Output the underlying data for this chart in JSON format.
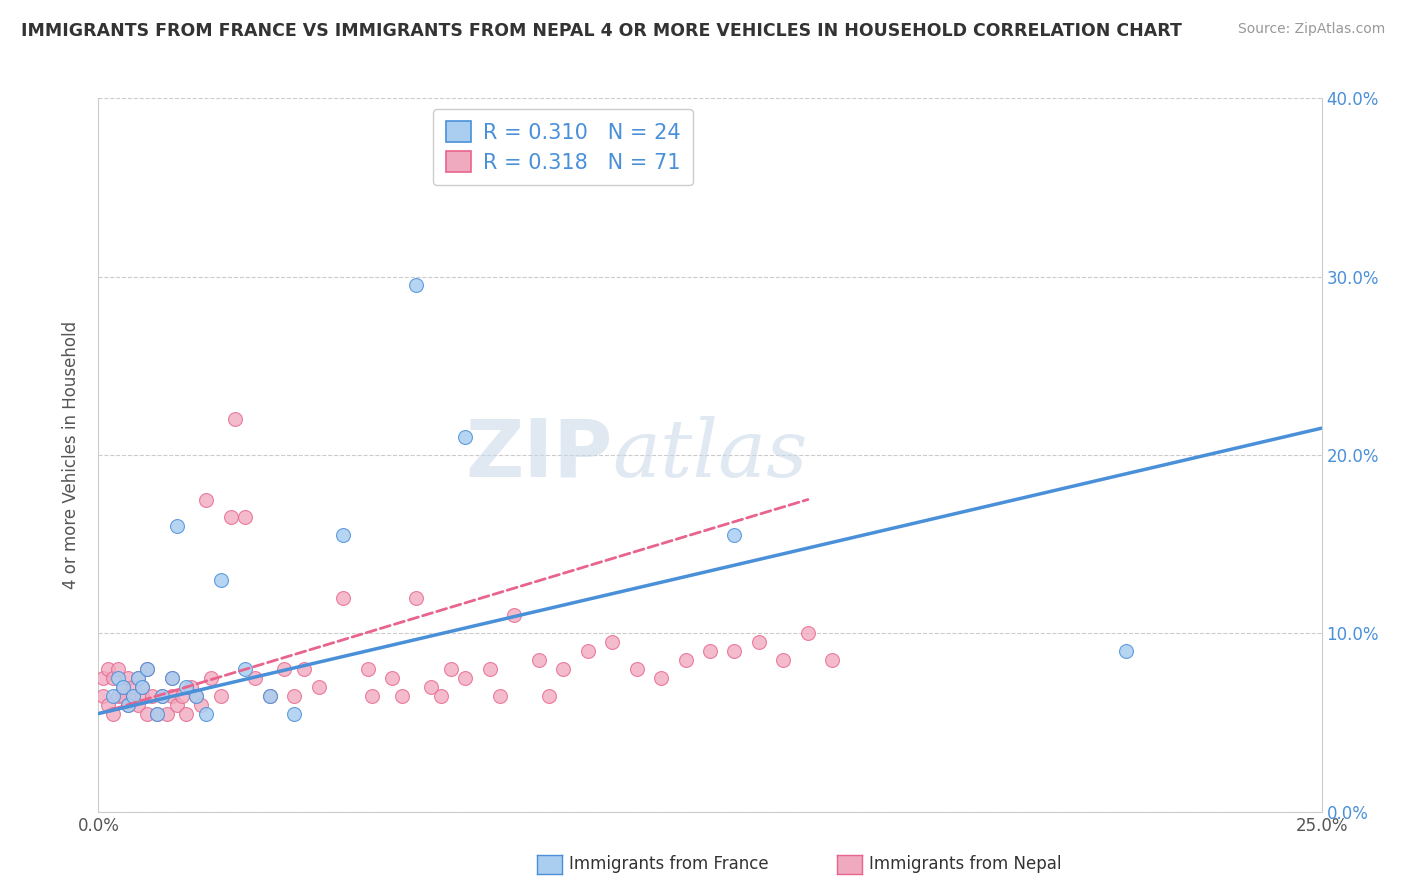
{
  "title": "IMMIGRANTS FROM FRANCE VS IMMIGRANTS FROM NEPAL 4 OR MORE VEHICLES IN HOUSEHOLD CORRELATION CHART",
  "source": "Source: ZipAtlas.com",
  "ylabel": "4 or more Vehicles in Household",
  "legend_label1": "Immigrants from France",
  "legend_label2": "Immigrants from Nepal",
  "r1": 0.31,
  "n1": 24,
  "r2": 0.318,
  "n2": 71,
  "xlim": [
    0.0,
    0.25
  ],
  "ylim": [
    0.0,
    0.4
  ],
  "xticks": [
    0.0,
    0.05,
    0.1,
    0.15,
    0.2,
    0.25
  ],
  "xticklabels": [
    "0.0%",
    "",
    "",
    "",
    "",
    "25.0%"
  ],
  "yticks": [
    0.0,
    0.1,
    0.2,
    0.3,
    0.4
  ],
  "yticklabels": [
    "0.0%",
    "10.0%",
    "20.0%",
    "30.0%",
    "40.0%"
  ],
  "color_france": "#aacef0",
  "color_nepal": "#f0aac0",
  "color_line_france": "#4a90d9",
  "color_line_nepal": "#e8648c",
  "watermark_zip": "ZIP",
  "watermark_atlas": "atlas",
  "france_x": [
    0.003,
    0.004,
    0.005,
    0.006,
    0.007,
    0.008,
    0.009,
    0.01,
    0.012,
    0.013,
    0.015,
    0.016,
    0.018,
    0.02,
    0.022,
    0.025,
    0.03,
    0.035,
    0.04,
    0.05,
    0.065,
    0.075,
    0.13,
    0.21
  ],
  "france_y": [
    0.065,
    0.075,
    0.07,
    0.06,
    0.065,
    0.075,
    0.07,
    0.08,
    0.055,
    0.065,
    0.075,
    0.16,
    0.07,
    0.065,
    0.055,
    0.13,
    0.08,
    0.065,
    0.055,
    0.155,
    0.295,
    0.21,
    0.155,
    0.09
  ],
  "nepal_x": [
    0.001,
    0.001,
    0.002,
    0.002,
    0.003,
    0.003,
    0.004,
    0.004,
    0.005,
    0.005,
    0.006,
    0.006,
    0.007,
    0.007,
    0.008,
    0.008,
    0.009,
    0.009,
    0.01,
    0.01,
    0.011,
    0.012,
    0.013,
    0.014,
    0.015,
    0.015,
    0.016,
    0.017,
    0.018,
    0.019,
    0.02,
    0.021,
    0.022,
    0.023,
    0.025,
    0.027,
    0.028,
    0.03,
    0.032,
    0.035,
    0.038,
    0.04,
    0.042,
    0.045,
    0.05,
    0.055,
    0.056,
    0.06,
    0.062,
    0.065,
    0.068,
    0.07,
    0.072,
    0.075,
    0.08,
    0.082,
    0.085,
    0.09,
    0.092,
    0.095,
    0.1,
    0.105,
    0.11,
    0.115,
    0.12,
    0.125,
    0.13,
    0.135,
    0.14,
    0.145,
    0.15
  ],
  "nepal_y": [
    0.065,
    0.075,
    0.06,
    0.08,
    0.055,
    0.075,
    0.065,
    0.08,
    0.065,
    0.07,
    0.06,
    0.075,
    0.065,
    0.07,
    0.06,
    0.075,
    0.065,
    0.07,
    0.055,
    0.08,
    0.065,
    0.055,
    0.065,
    0.055,
    0.075,
    0.065,
    0.06,
    0.065,
    0.055,
    0.07,
    0.065,
    0.06,
    0.175,
    0.075,
    0.065,
    0.165,
    0.22,
    0.165,
    0.075,
    0.065,
    0.08,
    0.065,
    0.08,
    0.07,
    0.12,
    0.08,
    0.065,
    0.075,
    0.065,
    0.12,
    0.07,
    0.065,
    0.08,
    0.075,
    0.08,
    0.065,
    0.11,
    0.085,
    0.065,
    0.08,
    0.09,
    0.095,
    0.08,
    0.075,
    0.085,
    0.09,
    0.09,
    0.095,
    0.085,
    0.1,
    0.085
  ],
  "france_line_x0": 0.0,
  "france_line_x1": 0.25,
  "france_line_y0": 0.055,
  "france_line_y1": 0.215,
  "nepal_line_x0": 0.0,
  "nepal_line_x1": 0.145,
  "nepal_line_y0": 0.055,
  "nepal_line_y1": 0.175
}
